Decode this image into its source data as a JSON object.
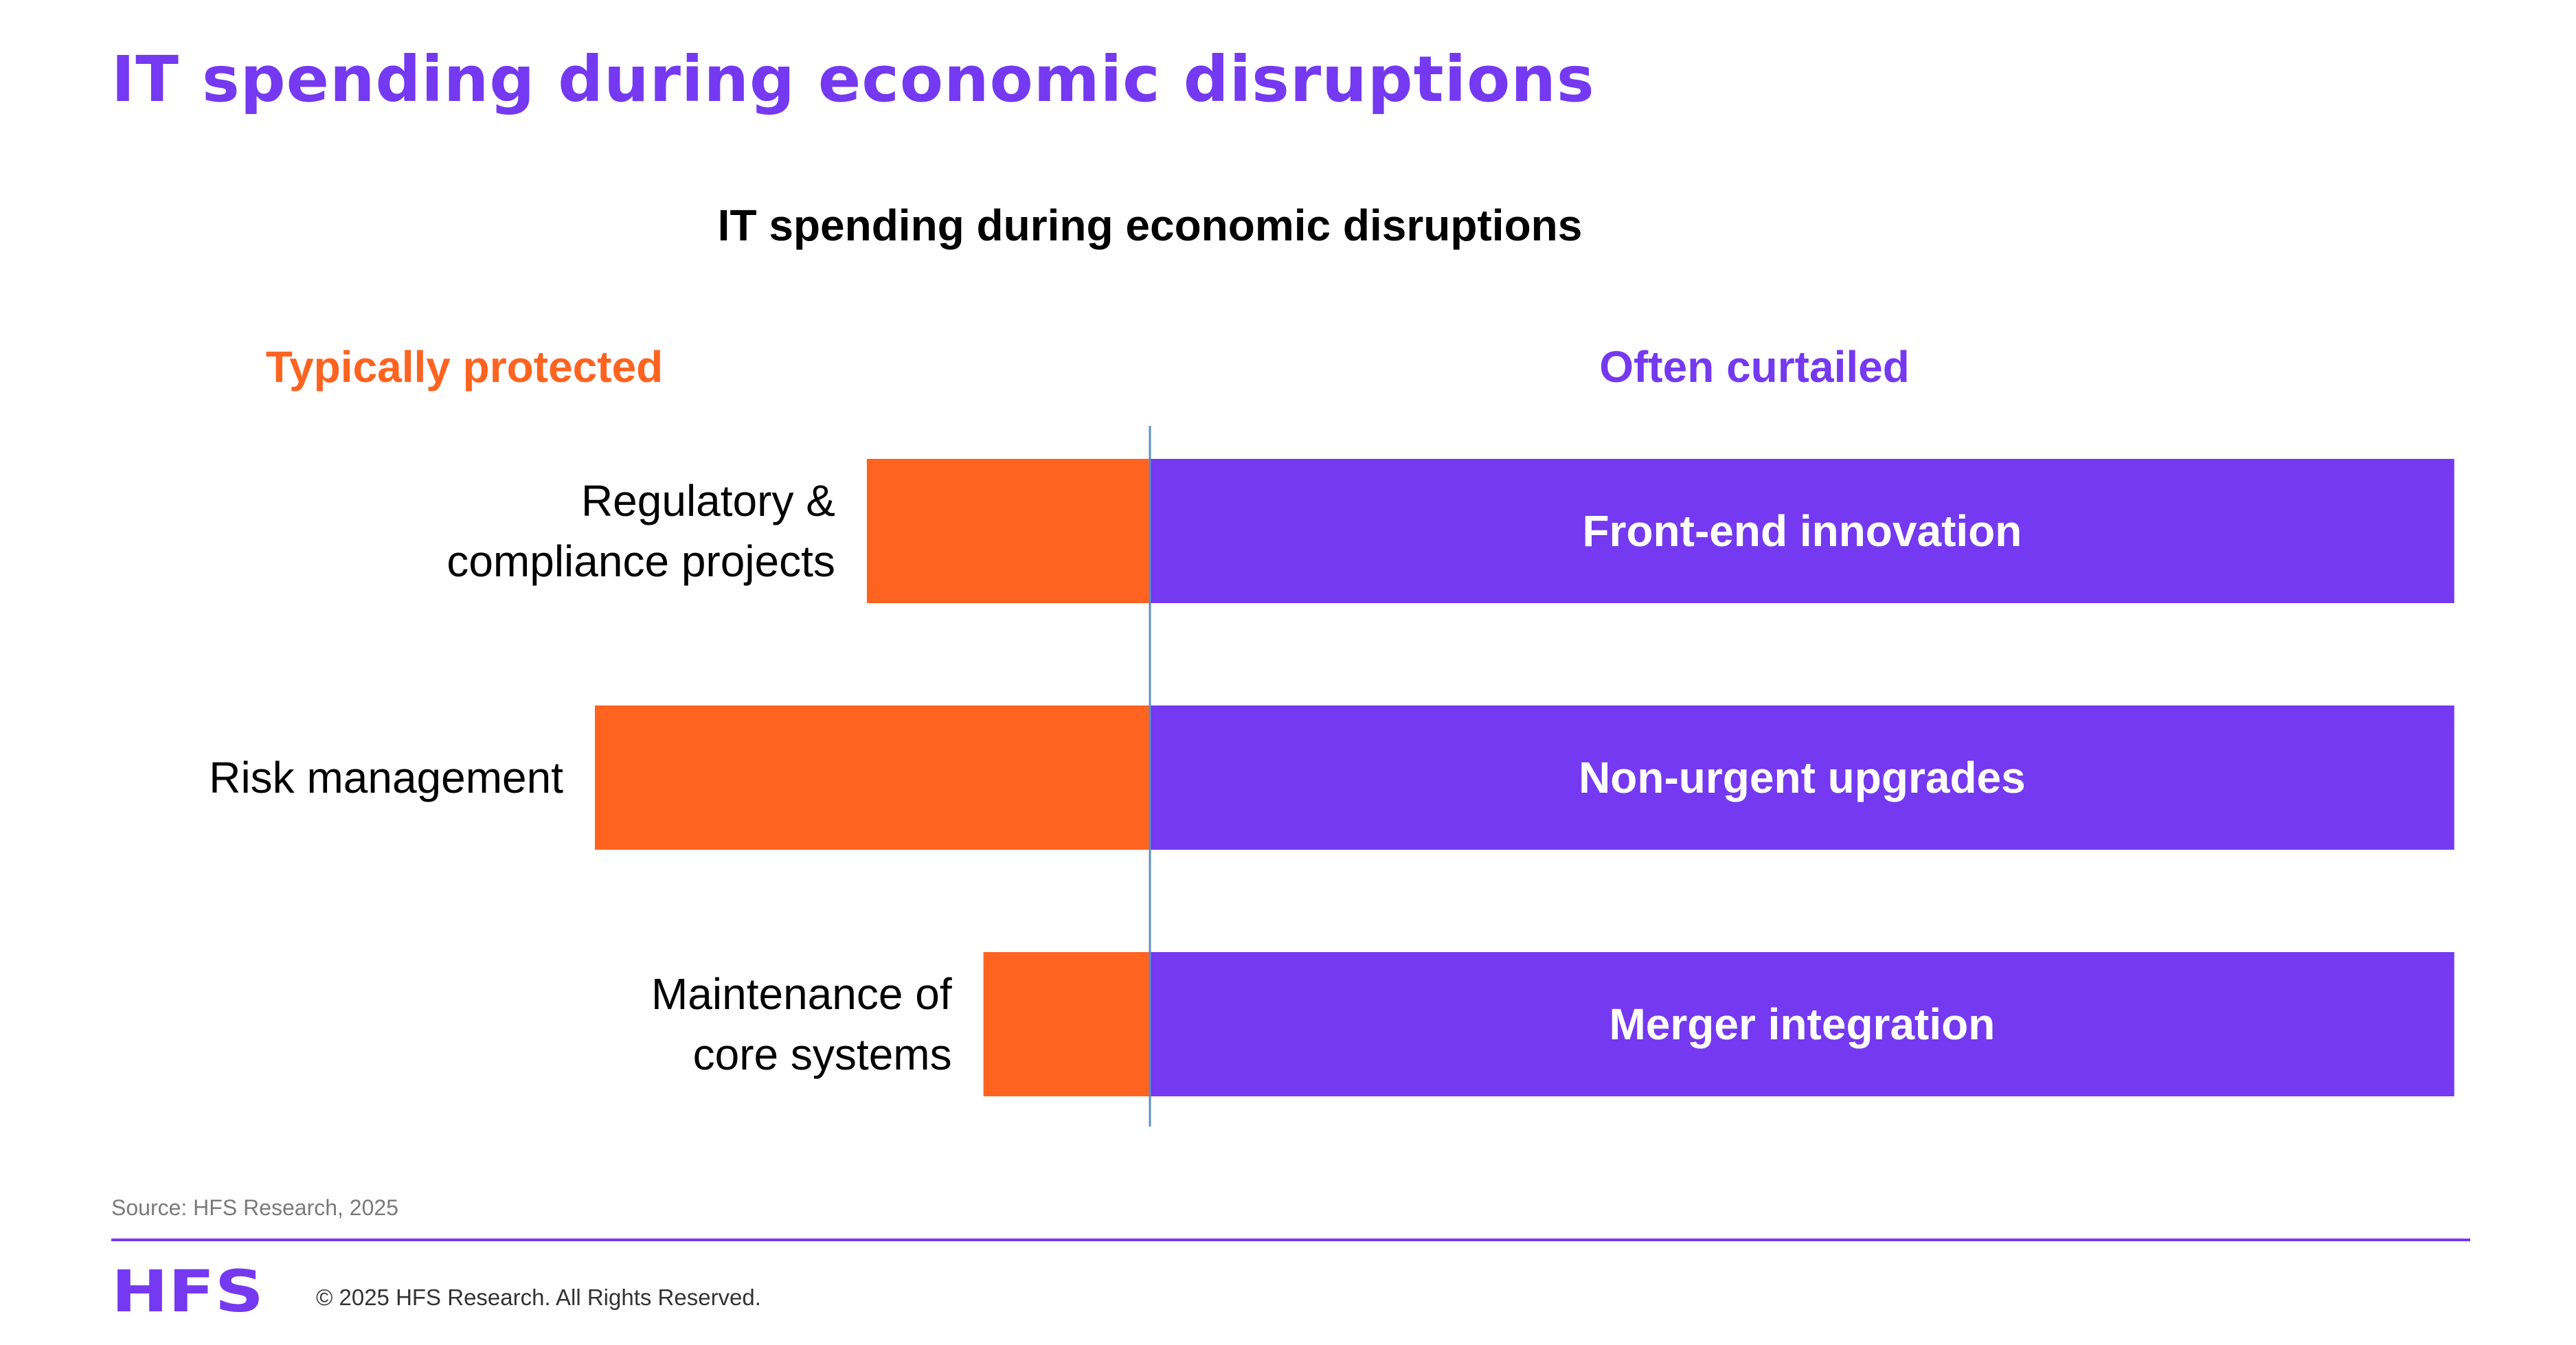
{
  "page": {
    "title": "IT spending during economic disruptions",
    "source": "Source: HFS Research, 2025",
    "copyright": "© 2025 HFS Research. All Rights Reserved.",
    "logo_text": "HFS"
  },
  "colors": {
    "accent": "#7439F0",
    "protected": "#FF6320",
    "curtailed": "#7439F0",
    "text": "#000000",
    "muted": "#7a7a7a"
  },
  "chart_data": {
    "type": "bar",
    "orientation": "horizontal-diverging",
    "title": "IT spending during economic disruptions",
    "legend_left": "Typically protected",
    "legend_right": "Often curtailed",
    "rows": [
      {
        "protected_label": [
          "Regulatory &",
          "compliance projects"
        ],
        "protected_value": 0.51,
        "curtailed_label": "Front-end innovation",
        "curtailed_value": 2.35
      },
      {
        "protected_label": [
          "Risk management"
        ],
        "protected_value": 1.0,
        "curtailed_label": "Non-urgent upgrades",
        "curtailed_value": 2.35
      },
      {
        "protected_label": [
          "Maintenance of",
          "core systems"
        ],
        "protected_value": 0.3,
        "curtailed_label": "Merger integration",
        "curtailed_value": 2.35
      }
    ]
  }
}
